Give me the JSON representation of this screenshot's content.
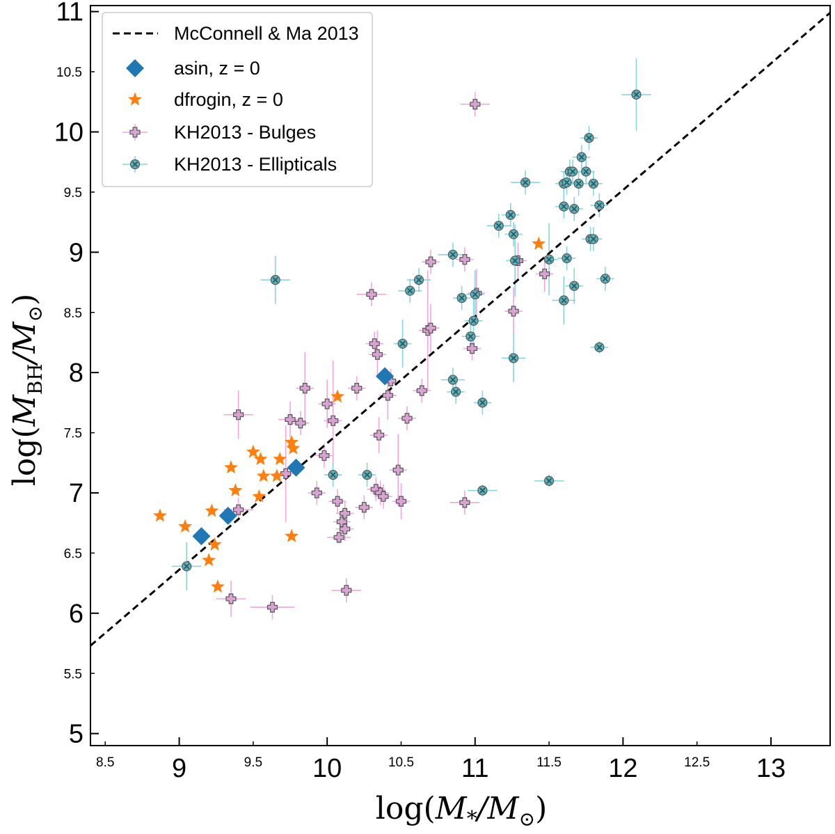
{
  "chart_data": {
    "type": "scatter",
    "xlabel": "log(M*/M⊙)",
    "ylabel": "log(MBH/M⊙)",
    "xlabel_parts": {
      "pre": "log(",
      "main": "M",
      "sub": "*",
      "post": "/M",
      "sub2": "⊙",
      "end": ")"
    },
    "ylabel_parts": {
      "pre": "log(",
      "main": "M",
      "sub": "BH",
      "post": "/M",
      "sub2": "⊙",
      "end": ")"
    },
    "xlim": [
      8.4,
      13.4
    ],
    "ylim": [
      4.9,
      11.05
    ],
    "x_major_ticks": [
      9,
      10,
      11,
      12,
      13
    ],
    "x_minor_ticks": [
      8.5,
      9.5,
      10.5,
      11.5,
      12.5
    ],
    "y_major_ticks": [
      5,
      6,
      7,
      8,
      9,
      10,
      11
    ],
    "y_minor_ticks": [
      5.5,
      6.5,
      7.5,
      8.5,
      9.5,
      10.5
    ],
    "legend_position": "top-left",
    "relation": {
      "name": "McConnell & Ma 2013",
      "line": [
        [
          8.4,
          5.73
        ],
        [
          13.4,
          10.99
        ]
      ],
      "color": "#000000"
    },
    "series": [
      {
        "name": "asin, z = 0",
        "marker": "diamond",
        "color": "#1f77b4",
        "points": [
          [
            9.15,
            6.64
          ],
          [
            9.33,
            6.81
          ],
          [
            9.79,
            7.21
          ],
          [
            10.39,
            7.97
          ]
        ]
      },
      {
        "name": "dfrogin, z = 0",
        "marker": "star",
        "color": "#ff7f0e",
        "points": [
          [
            8.87,
            6.81
          ],
          [
            9.04,
            6.72
          ],
          [
            9.2,
            6.44
          ],
          [
            9.22,
            6.85
          ],
          [
            9.24,
            6.57
          ],
          [
            9.26,
            6.22
          ],
          [
            9.35,
            7.21
          ],
          [
            9.38,
            7.02
          ],
          [
            9.5,
            7.34
          ],
          [
            9.54,
            6.97
          ],
          [
            9.55,
            7.28
          ],
          [
            9.57,
            7.14
          ],
          [
            9.66,
            7.14
          ],
          [
            9.68,
            7.28
          ],
          [
            9.76,
            7.42
          ],
          [
            9.77,
            7.37
          ],
          [
            9.76,
            6.64
          ],
          [
            10.07,
            7.8
          ],
          [
            11.43,
            9.07
          ]
        ]
      },
      {
        "name": "KH2013 - Bulges",
        "marker": "plus",
        "color": "#d9a3d4",
        "errcolor": "#f0a8dc",
        "points": [
          [
            9.35,
            6.12,
            0.1,
            0.15
          ],
          [
            9.4,
            6.86,
            0.1,
            0.1
          ],
          [
            9.4,
            7.65,
            0.1,
            0.2
          ],
          [
            9.63,
            6.05,
            0.15,
            0.1
          ],
          [
            9.72,
            7.16,
            0.08,
            0.4
          ],
          [
            9.75,
            7.61,
            0.08,
            0.15
          ],
          [
            9.82,
            7.58,
            0.06,
            0.1
          ],
          [
            9.85,
            7.87,
            0.06,
            0.3
          ],
          [
            9.93,
            7.0,
            0.06,
            0.1
          ],
          [
            9.98,
            7.31,
            0.06,
            0.1
          ],
          [
            10.0,
            7.74,
            0.06,
            0.2
          ],
          [
            10.04,
            7.6,
            0.06,
            0.5
          ],
          [
            10.07,
            6.93,
            0.06,
            0.1
          ],
          [
            10.08,
            6.63,
            0.08,
            0.05
          ],
          [
            10.1,
            6.76,
            0.06,
            0.1
          ],
          [
            10.12,
            6.83,
            0.06,
            0.1
          ],
          [
            10.12,
            6.7,
            0.06,
            0.1
          ],
          [
            10.13,
            6.19,
            0.1,
            0.1
          ],
          [
            10.2,
            7.87,
            0.06,
            0.1
          ],
          [
            10.25,
            6.88,
            0.06,
            0.1
          ],
          [
            10.3,
            8.65,
            0.1,
            0.1
          ],
          [
            10.32,
            8.24,
            0.06,
            0.1
          ],
          [
            10.33,
            7.03,
            0.06,
            0.1
          ],
          [
            10.34,
            8.15,
            0.06,
            0.2
          ],
          [
            10.35,
            7.48,
            0.06,
            0.15
          ],
          [
            10.36,
            7.0,
            0.06,
            0.1
          ],
          [
            10.38,
            6.97,
            0.06,
            0.1
          ],
          [
            10.41,
            7.81,
            0.06,
            0.2
          ],
          [
            10.43,
            7.93,
            0.06,
            0.1
          ],
          [
            10.48,
            7.19,
            0.06,
            0.3
          ],
          [
            10.5,
            6.93,
            0.06,
            0.15
          ],
          [
            10.54,
            7.62,
            0.06,
            0.1
          ],
          [
            10.64,
            7.85,
            0.06,
            0.1
          ],
          [
            10.68,
            8.35,
            0.06,
            0.5
          ],
          [
            10.7,
            8.37,
            0.06,
            0.2
          ],
          [
            10.7,
            8.92,
            0.06,
            0.1
          ],
          [
            10.93,
            8.94,
            0.06,
            0.1
          ],
          [
            10.93,
            6.92,
            0.1,
            0.1
          ],
          [
            10.98,
            8.2,
            0.06,
            0.1
          ],
          [
            11.0,
            10.23,
            0.1,
            0.1
          ],
          [
            11.01,
            8.66,
            0.06,
            0.2
          ],
          [
            11.26,
            8.51,
            0.06,
            0.2
          ],
          [
            11.29,
            8.93,
            0.06,
            0.15
          ],
          [
            11.47,
            8.82,
            0.06,
            0.15
          ]
        ]
      },
      {
        "name": "KH2013 - Ellipticals",
        "marker": "x",
        "color": "#5db3bd",
        "errcolor": "#86d6de",
        "points": [
          [
            9.05,
            6.39,
            0.1,
            0.2
          ],
          [
            9.65,
            8.77,
            0.1,
            0.2
          ],
          [
            10.04,
            7.15,
            0.06,
            0.1
          ],
          [
            10.27,
            7.15,
            0.06,
            0.1
          ],
          [
            10.51,
            8.24,
            0.06,
            0.2
          ],
          [
            10.56,
            8.68,
            0.08,
            0.1
          ],
          [
            10.62,
            8.77,
            0.08,
            0.1
          ],
          [
            10.85,
            8.98,
            0.1,
            0.1
          ],
          [
            10.85,
            7.94,
            0.08,
            0.1
          ],
          [
            10.87,
            7.84,
            0.06,
            0.1
          ],
          [
            10.91,
            8.62,
            0.06,
            0.1
          ],
          [
            10.97,
            8.3,
            0.06,
            0.1
          ],
          [
            10.99,
            8.43,
            0.06,
            0.2
          ],
          [
            11.0,
            8.65,
            0.06,
            0.2
          ],
          [
            11.05,
            7.75,
            0.06,
            0.1
          ],
          [
            11.05,
            7.02,
            0.1,
            0.05
          ],
          [
            11.16,
            9.22,
            0.08,
            0.1
          ],
          [
            11.24,
            9.31,
            0.06,
            0.1
          ],
          [
            11.26,
            9.15,
            0.06,
            0.1
          ],
          [
            11.26,
            8.12,
            0.08,
            0.2
          ],
          [
            11.27,
            8.93,
            0.06,
            0.3
          ],
          [
            11.34,
            9.58,
            0.1,
            0.1
          ],
          [
            11.5,
            7.1,
            0.1,
            0.05
          ],
          [
            11.5,
            8.94,
            0.06,
            0.3
          ],
          [
            11.6,
            9.57,
            0.06,
            0.1
          ],
          [
            11.6,
            9.38,
            0.06,
            0.1
          ],
          [
            11.6,
            8.6,
            0.08,
            0.2
          ],
          [
            11.62,
            9.58,
            0.06,
            0.1
          ],
          [
            11.62,
            8.95,
            0.06,
            0.1
          ],
          [
            11.64,
            9.67,
            0.06,
            0.1
          ],
          [
            11.66,
            9.67,
            0.06,
            0.1
          ],
          [
            11.67,
            9.36,
            0.06,
            0.1
          ],
          [
            11.67,
            8.72,
            0.06,
            0.15
          ],
          [
            11.7,
            9.57,
            0.06,
            0.1
          ],
          [
            11.72,
            9.79,
            0.06,
            0.1
          ],
          [
            11.75,
            9.67,
            0.06,
            0.1
          ],
          [
            11.77,
            9.95,
            0.06,
            0.1
          ],
          [
            11.78,
            9.11,
            0.06,
            0.1
          ],
          [
            11.8,
            9.57,
            0.06,
            0.1
          ],
          [
            11.8,
            9.11,
            0.06,
            0.1
          ],
          [
            11.84,
            9.39,
            0.06,
            0.1
          ],
          [
            11.84,
            8.21,
            0.06,
            0.05
          ],
          [
            11.88,
            8.78,
            0.06,
            0.1
          ],
          [
            12.09,
            10.31,
            0.1,
            0.3
          ]
        ]
      }
    ]
  }
}
